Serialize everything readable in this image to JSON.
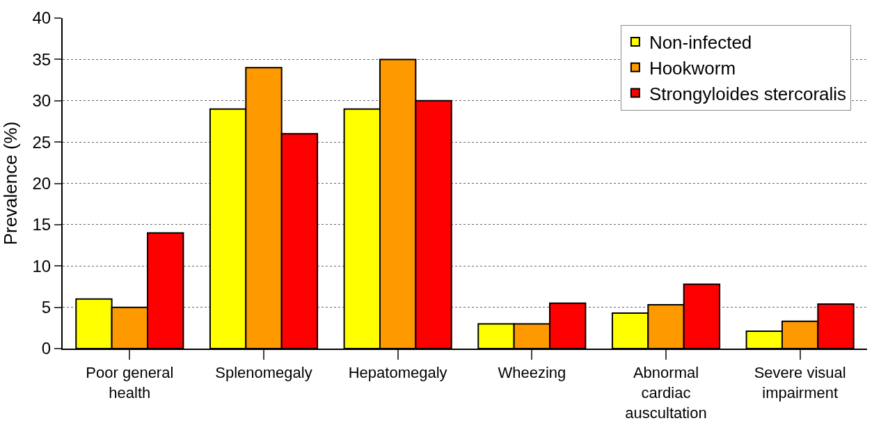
{
  "chart_data": {
    "type": "bar",
    "ylabel": "Prevalence (%)",
    "categories": [
      "Poor general\nhealth",
      "Splenomegaly",
      "Hepatomegaly",
      "Wheezing",
      "Abnormal\ncardiac\nauscultation",
      "Severe visual\nimpairment"
    ],
    "series": [
      {
        "name": "Non-infected",
        "color": "#ffff00",
        "values": [
          6,
          29,
          29,
          3,
          4.3,
          2.1
        ]
      },
      {
        "name": "Hookworm",
        "color": "#ff9900",
        "values": [
          5,
          34,
          35,
          3,
          5.3,
          3.3
        ]
      },
      {
        "name": "Strongyloides stercoralis",
        "color": "#ff0000",
        "values": [
          14,
          26,
          30,
          5.5,
          7.8,
          5.4
        ]
      }
    ],
    "ylim": [
      0,
      40
    ],
    "yticks": [
      0,
      5,
      10,
      15,
      20,
      25,
      30,
      35,
      40
    ],
    "grid": "y",
    "legend": "top right"
  }
}
